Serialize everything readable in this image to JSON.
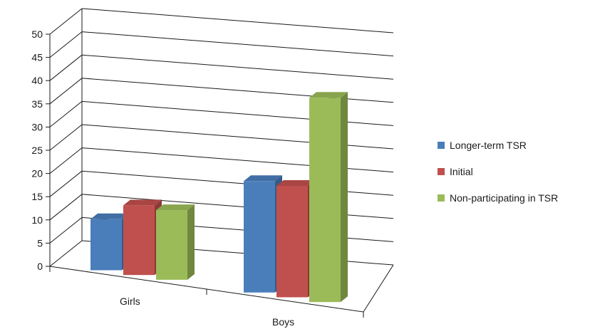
{
  "chart_data": {
    "type": "bar",
    "categories": [
      "Girls",
      "Boys"
    ],
    "series": [
      {
        "name": "Longer-term TSR",
        "values": [
          11,
          24
        ]
      },
      {
        "name": "Initial",
        "values": [
          15,
          24
        ]
      },
      {
        "name": "Non-participating in TSR",
        "values": [
          15,
          44
        ]
      }
    ],
    "ylim": [
      0,
      50
    ],
    "yticks": [
      "0",
      "5",
      "10",
      "15",
      "20",
      "25",
      "30",
      "35",
      "40",
      "45",
      "50"
    ],
    "grid": true,
    "legend_position": "right",
    "colors": {
      "Longer-term TSR": "#4a7ebb",
      "Initial": "#c0504d",
      "Non-participating in TSR": "#9bbb59"
    }
  }
}
